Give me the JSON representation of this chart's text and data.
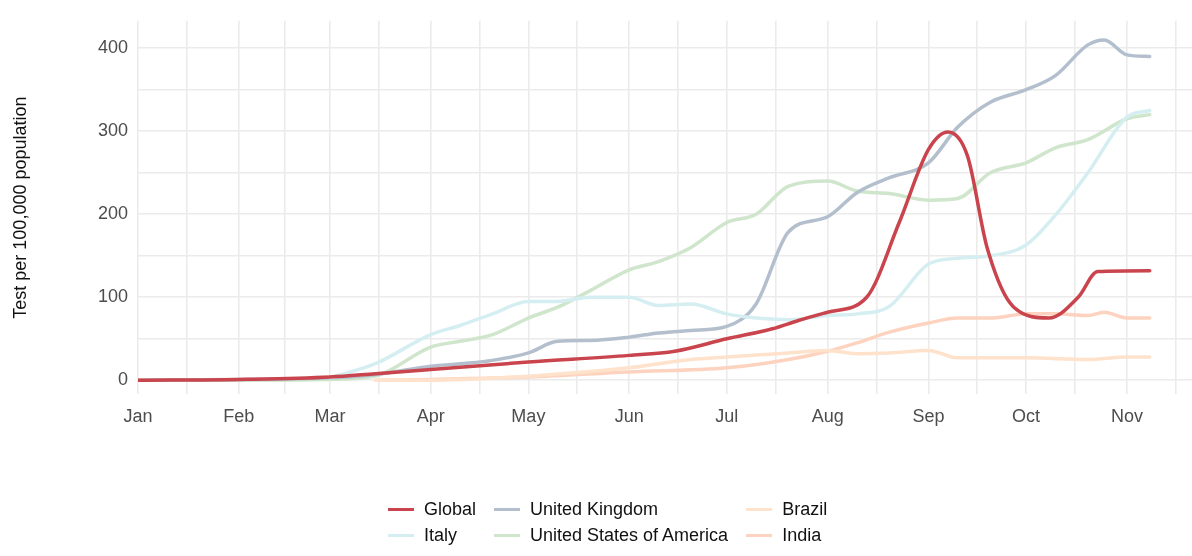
{
  "chart_data": {
    "type": "line",
    "ylabel": "Test per 100,000 population",
    "legend": "bottom",
    "grid": true,
    "marker": "none",
    "line_style": "solid",
    "xlim": [
      "--01-01",
      "--11-21"
    ],
    "xticks": [
      {
        "value": "--01-01",
        "label": "Jan"
      },
      {
        "value": "--01-16",
        "label": null
      },
      {
        "value": "--02-01",
        "label": "Feb"
      },
      {
        "value": "--02-15",
        "label": null
      },
      {
        "value": "--03-01",
        "label": "Mar"
      },
      {
        "value": "--03-16",
        "label": null
      },
      {
        "value": "--04-01",
        "label": "Apr"
      },
      {
        "value": "--04-16",
        "label": null
      },
      {
        "value": "--05-01",
        "label": "May"
      },
      {
        "value": "--05-16",
        "label": null
      },
      {
        "value": "--06-01",
        "label": "Jun"
      },
      {
        "value": "--06-16",
        "label": null
      },
      {
        "value": "--07-01",
        "label": "Jul"
      },
      {
        "value": "--07-16",
        "label": null
      },
      {
        "value": "--08-01",
        "label": "Aug"
      },
      {
        "value": "--08-16",
        "label": null
      },
      {
        "value": "--09-01",
        "label": "Sep"
      },
      {
        "value": "--09-16",
        "label": null
      },
      {
        "value": "--10-01",
        "label": "Oct"
      },
      {
        "value": "--10-16",
        "label": null
      },
      {
        "value": "--11-01",
        "label": "Nov"
      },
      {
        "value": "--11-16",
        "label": null
      }
    ],
    "ylim": [
      -17,
      433
    ],
    "yticks": [
      0,
      {
        "value": 50,
        "label": null
      },
      100,
      {
        "value": 150,
        "label": null
      },
      200,
      {
        "value": 250,
        "label": null
      },
      300,
      {
        "value": 350,
        "label": null
      },
      400
    ],
    "series": [
      {
        "name": "Global",
        "color": "#c9444d",
        "x": [
          "--01-01",
          "--02-01",
          "--03-01",
          "--03-15",
          "--04-01",
          "--05-01",
          "--06-01",
          "--06-15",
          "--07-01",
          "--07-15",
          "--07-23",
          "--08-01",
          "--08-13",
          "--08-23",
          "--09-01",
          "--09-07",
          "--09-13",
          "--09-19",
          "--09-27",
          "--10-08",
          "--10-17",
          "--10-23",
          "--11-08"
        ],
        "values": [
          0,
          1,
          4,
          8,
          13,
          22,
          30,
          35,
          50,
          62,
          72,
          82,
          100,
          190,
          278,
          299,
          270,
          160,
          89,
          75,
          100,
          131,
          132
        ]
      },
      {
        "name": "Italy",
        "color": "#d5eef1",
        "x": [
          "--03-01",
          "--03-15",
          "--04-01",
          "--04-10",
          "--04-20",
          "--05-01",
          "--05-10",
          "--05-20",
          "--06-01",
          "--06-10",
          "--06-20",
          "--07-01",
          "--07-10",
          "--07-20",
          "--08-01",
          "--08-10",
          "--08-20",
          "--09-01",
          "--09-10",
          "--09-20",
          "--10-01",
          "--10-10",
          "--10-20",
          "--11-01",
          "--11-08"
        ],
        "values": [
          3,
          20,
          55,
          66,
          80,
          95,
          95,
          100,
          100,
          90,
          92,
          80,
          75,
          73,
          78,
          80,
          89,
          140,
          147,
          150,
          163,
          199,
          250,
          317,
          325
        ]
      },
      {
        "name": "United Kingdom",
        "color": "#b3bfcd",
        "x": [
          "--01-01",
          "--02-01",
          "--03-01",
          "--03-15",
          "--04-01",
          "--04-10",
          "--04-20",
          "--05-01",
          "--05-10",
          "--05-20",
          "--06-01",
          "--06-10",
          "--06-20",
          "--07-01",
          "--07-10",
          "--07-20",
          "--08-01",
          "--08-10",
          "--08-20",
          "--09-01",
          "--09-10",
          "--09-20",
          "--10-01",
          "--10-10",
          "--10-20",
          "--10-25",
          "--11-01",
          "--11-08"
        ],
        "values": [
          0,
          1,
          3,
          7,
          17,
          20,
          24,
          33,
          47,
          48,
          52,
          57,
          60,
          65,
          92,
          179,
          197,
          226,
          244,
          262,
          305,
          335,
          350,
          367,
          404,
          410,
          392,
          390
        ]
      },
      {
        "name": "United States of America",
        "color": "#cfe5cc",
        "x": [
          "--01-01",
          "--02-01",
          "--03-01",
          "--03-15",
          "--04-01",
          "--04-10",
          "--04-20",
          "--05-01",
          "--05-10",
          "--05-20",
          "--06-01",
          "--06-10",
          "--06-20",
          "--07-01",
          "--07-10",
          "--07-20",
          "--08-01",
          "--08-10",
          "--08-20",
          "--09-01",
          "--09-10",
          "--09-20",
          "--10-01",
          "--10-10",
          "--10-20",
          "--11-01",
          "--11-08"
        ],
        "values": [
          0,
          0,
          1,
          5,
          40,
          47,
          55,
          75,
          88,
          108,
          133,
          143,
          160,
          190,
          200,
          234,
          240,
          228,
          225,
          217,
          219,
          250,
          262,
          280,
          290,
          315,
          320
        ]
      },
      {
        "name": "Brazil",
        "color": "#fee2cb",
        "x": [
          "--03-15",
          "--04-01",
          "--05-01",
          "--06-01",
          "--06-20",
          "--07-01",
          "--07-20",
          "--08-01",
          "--08-10",
          "--08-20",
          "--09-01",
          "--09-10",
          "--09-20",
          "--10-01",
          "--10-20",
          "--11-01",
          "--11-08"
        ],
        "values": [
          0,
          0,
          5,
          15,
          25,
          28,
          33,
          36,
          32,
          33,
          36,
          27,
          27,
          27,
          25,
          28,
          28
        ]
      },
      {
        "name": "India",
        "color": "#fdd3bf",
        "x": [
          "--03-15",
          "--04-01",
          "--05-01",
          "--06-01",
          "--07-01",
          "--07-20",
          "--08-01",
          "--08-10",
          "--08-20",
          "--09-01",
          "--09-10",
          "--09-20",
          "--10-01",
          "--10-10",
          "--10-20",
          "--10-25",
          "--11-01",
          "--11-08"
        ],
        "values": [
          0,
          1,
          4,
          10,
          15,
          25,
          35,
          45,
          58,
          69,
          75,
          75,
          80,
          80,
          78,
          82,
          75,
          75
        ]
      }
    ]
  }
}
